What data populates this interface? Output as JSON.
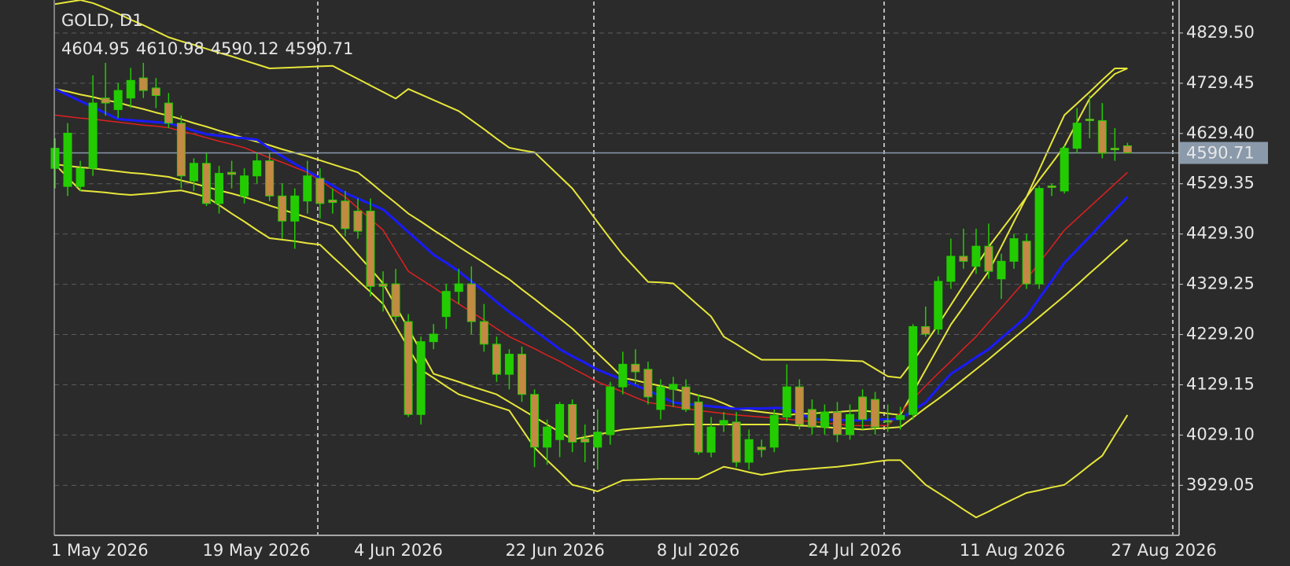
{
  "chart_data": {
    "type": "candlestick",
    "title": "GOLD, D1",
    "categories": [
      "1 May 2026",
      null,
      null,
      null,
      null,
      null,
      null,
      null,
      null,
      null,
      null,
      null,
      "19 May 2026",
      null,
      null,
      null,
      null,
      null,
      null,
      null,
      null,
      null,
      null,
      null,
      "4 Jun 2026",
      null,
      null,
      null,
      null,
      null,
      null,
      null,
      null,
      null,
      null,
      null,
      "22 Jun 2026",
      null,
      null,
      null,
      null,
      null,
      null,
      null,
      null,
      null,
      null,
      null,
      "8 Jul 2026",
      null,
      null,
      null,
      null,
      null,
      null,
      null,
      null,
      null,
      null,
      null,
      "24 Jul 2026",
      null,
      null,
      null,
      null,
      null,
      null,
      null,
      null,
      null,
      null,
      null,
      "11 Aug 2026",
      null,
      null,
      null,
      null,
      null,
      null,
      null,
      null,
      null,
      null,
      null,
      "27 Aug 2026",
      null
    ],
    "open": [
      4560,
      4524,
      4524,
      4560,
      4700,
      4677,
      4700,
      4740,
      4720,
      4690,
      4650,
      4535,
      4570,
      4490,
      4552,
      4505,
      4545,
      4575,
      4505,
      4455,
      4495,
      4540,
      4497,
      4495,
      4475,
      4475,
      4330,
      4330,
      4255,
      4070,
      4215,
      4265,
      4315,
      4330,
      4255,
      4210,
      4150,
      4190,
      4110,
      4005,
      4020,
      4090,
      4022,
      4005,
      4030,
      4125,
      4170,
      4160,
      4080,
      4120,
      4125,
      4095,
      3995,
      4050,
      4055,
      3975,
      4005,
      4005,
      4065,
      4125,
      4080,
      4045,
      4075,
      4030,
      4105,
      4100,
      4058,
      4060,
      4070,
      4245,
      4240,
      4335,
      4385,
      4365,
      4405,
      4340,
      4375,
      4415,
      4330,
      4525,
      4515,
      4600,
      4658,
      4655,
      4600,
      4604.95
    ],
    "high": [
      4620,
      4650,
      4575,
      4745,
      4770,
      4730,
      4760,
      4770,
      4740,
      4710,
      4665,
      4580,
      4590,
      4565,
      4575,
      4560,
      4590,
      4590,
      4530,
      4520,
      4575,
      4560,
      4520,
      4515,
      4500,
      4500,
      4355,
      4360,
      4270,
      4225,
      4250,
      4330,
      4360,
      4365,
      4290,
      4225,
      4200,
      4205,
      4120,
      4060,
      4095,
      4100,
      4050,
      4080,
      4135,
      4195,
      4200,
      4175,
      4140,
      4145,
      4140,
      4110,
      4065,
      4075,
      4075,
      4040,
      4020,
      4080,
      4170,
      4140,
      4100,
      4090,
      4095,
      4090,
      4120,
      4115,
      4090,
      4085,
      4250,
      4285,
      4345,
      4420,
      4440,
      4440,
      4450,
      4390,
      4430,
      4430,
      4525,
      4530,
      4605,
      4680,
      4705,
      4690,
      4640,
      4610.98
    ],
    "low": [
      4520,
      4505,
      4515,
      4545,
      4665,
      4660,
      4680,
      4700,
      4680,
      4640,
      4520,
      4515,
      4485,
      4470,
      4520,
      4490,
      4530,
      4495,
      4420,
      4400,
      4470,
      4460,
      4470,
      4425,
      4420,
      4305,
      4275,
      4255,
      4065,
      4050,
      4200,
      4240,
      4290,
      4230,
      4195,
      4135,
      4120,
      4095,
      3965,
      3970,
      3985,
      3995,
      3975,
      3960,
      4010,
      4110,
      4130,
      4090,
      4060,
      4085,
      4075,
      3990,
      3985,
      4035,
      3965,
      3960,
      3985,
      3995,
      4055,
      4040,
      4030,
      4030,
      4015,
      4020,
      4040,
      4030,
      4035,
      4040,
      4060,
      4225,
      4230,
      4320,
      4360,
      4350,
      4340,
      4300,
      4360,
      4320,
      4320,
      4505,
      4510,
      4590,
      4620,
      4580,
      4575,
      4590.12
    ],
    "close": [
      4600,
      4630,
      4560,
      4690,
      4690,
      4715,
      4735,
      4715,
      4705,
      4650,
      4545,
      4570,
      4490,
      4550,
      4548,
      4545,
      4575,
      4505,
      4455,
      4505,
      4545,
      4490,
      4492,
      4440,
      4435,
      4325,
      4325,
      4265,
      4070,
      4215,
      4230,
      4315,
      4330,
      4255,
      4210,
      4150,
      4190,
      4110,
      4005,
      4045,
      4090,
      4015,
      4015,
      4035,
      4125,
      4170,
      4155,
      4105,
      4125,
      4130,
      4080,
      3995,
      4045,
      4058,
      3975,
      4020,
      4000,
      4068,
      4125,
      4050,
      4045,
      4075,
      4030,
      4070,
      4060,
      4045,
      4055,
      4068,
      4245,
      4230,
      4335,
      4385,
      4375,
      4405,
      4355,
      4375,
      4420,
      4330,
      4520,
      4522,
      4600,
      4650,
      4655,
      4590,
      4597,
      4590.71
    ],
    "up_color": "#22cc00",
    "down_color": "#c48a44",
    "price_line_color": "#8a9aab",
    "lines": [
      {
        "color": "#e6e63a",
        "width": 2,
        "values": [
          4887,
          4891,
          4895,
          4889,
          4879,
          4868,
          4856,
          4845,
          4833,
          4821,
          4813,
          4806,
          4798,
          4790,
          4783,
          4775,
          4767,
          4759,
          4760,
          4761,
          4762,
          4763,
          4764,
          4751,
          4738,
          4725,
          4712,
          4699,
          4718,
          4707,
          4696,
          4685,
          4674,
          4656,
          4638,
          4619,
          4601,
          4596,
          4592,
          4568,
          4544,
          4520,
          4487,
          4453,
          4420,
          4388,
          4361,
          4334,
          4333,
          4331,
          4309,
          4287,
          4265,
          4225,
          4210,
          4194,
          4179,
          4179,
          4179,
          4179,
          4179,
          4179,
          4178,
          4177,
          4176,
          4161,
          4146,
          4143,
          4176,
          4212,
          4249,
          4288,
          4327,
          4365,
          4404,
          4437,
          4470,
          4503,
          4557,
          4612,
          4666,
          4689,
          4712,
          4736,
          4759,
          4759
        ]
      },
      {
        "color": "#e6e63a",
        "width": 2,
        "values": [
          4718,
          4713,
          4707,
          4702,
          4696,
          4691,
          4684,
          4678,
          4671,
          4665,
          4658,
          4650,
          4643,
          4635,
          4628,
          4620,
          4613,
          4606,
          4598,
          4591,
          4584,
          4576,
          4568,
          4560,
          4552,
          4532,
          4511,
          4491,
          4470,
          4454,
          4437,
          4421,
          4404,
          4388,
          4372,
          4355,
          4339,
          4319,
          4300,
          4280,
          4261,
          4241,
          4217,
          4192,
          4168,
          4143,
          4138,
          4132,
          4127,
          4121,
          4115,
          4108,
          4102,
          4092,
          4081,
          4078,
          4075,
          4072,
          4069,
          4071,
          4072,
          4074,
          4075,
          4077,
          4078,
          4075,
          4072,
          4069,
          4114,
          4159,
          4204,
          4249,
          4284,
          4320,
          4355,
          4404,
          4454,
          4503,
          4537,
          4570,
          4604,
          4652,
          4699,
          4724,
          4748,
          4759
        ]
      },
      {
        "color": "#e6e63a",
        "width": 2,
        "values": [
          4568,
          4565,
          4562,
          4560,
          4557,
          4554,
          4551,
          4549,
          4546,
          4543,
          4536,
          4530,
          4523,
          4516,
          4510,
          4503,
          4495,
          4486,
          4478,
          4470,
          4462,
          4453,
          4445,
          4417,
          4388,
          4360,
          4331,
          4286,
          4241,
          4196,
          4151,
          4143,
          4135,
          4126,
          4118,
          4110,
          4095,
          4080,
          4065,
          4050,
          4035,
          4020,
          4025,
          4030,
          4035,
          4040,
          4042,
          4044,
          4046,
          4048,
          4050,
          4050,
          4050,
          4050,
          4050,
          4050,
          4050,
          4050,
          4050,
          4048,
          4047,
          4045,
          4043,
          4042,
          4040,
          4042,
          4043,
          4045,
          4064,
          4083,
          4101,
          4120,
          4140,
          4160,
          4180,
          4201,
          4222,
          4243,
          4264,
          4285,
          4306,
          4328,
          4351,
          4373,
          4396,
          4418
        ]
      },
      {
        "color": "#e6e63a",
        "width": 2,
        "values": [
          4568,
          4542,
          4516,
          4514,
          4512,
          4509,
          4507,
          4509,
          4511,
          4514,
          4516,
          4510,
          4503,
          4487,
          4470,
          4454,
          4437,
          4421,
          4418,
          4415,
          4411,
          4408,
          4384,
          4361,
          4337,
          4314,
          4290,
          4246,
          4203,
          4159,
          4143,
          4126,
          4110,
          4102,
          4094,
          4086,
          4078,
          4041,
          4004,
          3979,
          3955,
          3930,
          3924,
          3917,
          3928,
          3939,
          3940,
          3941,
          3942,
          3942,
          3942,
          3942,
          3954,
          3966,
          3961,
          3955,
          3950,
          3954,
          3958,
          3960,
          3962,
          3964,
          3966,
          3969,
          3972,
          3976,
          3979,
          3979,
          3955,
          3930,
          3914,
          3898,
          3881,
          3865,
          3877,
          3890,
          3902,
          3914,
          3919,
          3925,
          3930,
          3949,
          3969,
          3988,
          4029,
          4069
        ]
      },
      {
        "color": "#e02020",
        "width": 1.5,
        "values": [
          4666,
          4663,
          4660,
          4658,
          4655,
          4652,
          4649,
          4646,
          4644,
          4641,
          4634,
          4628,
          4621,
          4614,
          4608,
          4601,
          4591,
          4581,
          4572,
          4562,
          4552,
          4536,
          4519,
          4503,
          4481,
          4459,
          4437,
          4396,
          4355,
          4339,
          4323,
          4306,
          4290,
          4274,
          4258,
          4241,
          4225,
          4213,
          4201,
          4188,
          4176,
          4162,
          4149,
          4135,
          4125,
          4115,
          4104,
          4094,
          4090,
          4086,
          4082,
          4078,
          4075,
          4072,
          4069,
          4067,
          4065,
          4063,
          4061,
          4058,
          4056,
          4053,
          4051,
          4048,
          4048,
          4048,
          4048,
          4074,
          4101,
          4127,
          4152,
          4176,
          4201,
          4225,
          4254,
          4282,
          4311,
          4339,
          4372,
          4404,
          4437,
          4460,
          4483,
          4506,
          4529,
          4552
        ]
      },
      {
        "color": "#1a1aff",
        "width": 3,
        "values": [
          4718,
          4706,
          4694,
          4682,
          4670,
          4658,
          4656,
          4654,
          4652,
          4650,
          4643,
          4635,
          4628,
          4625,
          4622,
          4620,
          4617,
          4600,
          4584,
          4569,
          4555,
          4540,
          4526,
          4511,
          4500,
          4489,
          4478,
          4456,
          4433,
          4411,
          4388,
          4372,
          4355,
          4335,
          4315,
          4294,
          4274,
          4256,
          4237,
          4219,
          4200,
          4186,
          4173,
          4159,
          4149,
          4139,
          4128,
          4118,
          4106,
          4094,
          4091,
          4089,
          4086,
          4084,
          4081,
          4082,
          4082,
          4083,
          4083,
          4072,
          4061,
          4060,
          4059,
          4058,
          4059,
          4060,
          4060,
          4061,
          4078,
          4094,
          4123,
          4151,
          4167,
          4184,
          4200,
          4222,
          4243,
          4265,
          4301,
          4336,
          4372,
          4398,
          4424,
          4451,
          4477,
          4503
        ]
      }
    ],
    "ylim": [
      3831,
      4892
    ],
    "yticks": [
      3929.05,
      {
        "value": 4029.1,
        "label": "4029.10"
      },
      4129.15,
      {
        "value": 4229.2,
        "label": "4229.20"
      },
      4329.25,
      {
        "value": 4429.3,
        "label": "4429.30"
      },
      4529.35,
      {
        "value": 4629.4,
        "label": "4629.40"
      },
      4729.45,
      {
        "value": 4829.5,
        "label": "4829.50"
      }
    ],
    "grid": true
  }
}
